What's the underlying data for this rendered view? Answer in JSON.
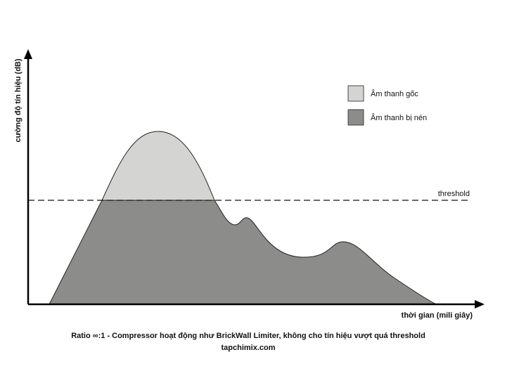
{
  "axis": {
    "y_label": "cường độ tín hiệu (dB)",
    "x_label": "thời gian (mili giây)"
  },
  "legend": [
    {
      "label": "Âm thanh gốc"
    },
    {
      "label": "Âm thanh bị nén"
    }
  ],
  "threshold_label": "threshold",
  "caption": {
    "line1": "Ratio ∞:1 - Compressor hoạt động như BrickWall Limiter, không cho tín hiệu vượt quá threshold",
    "source": "tapchimix.com"
  }
}
